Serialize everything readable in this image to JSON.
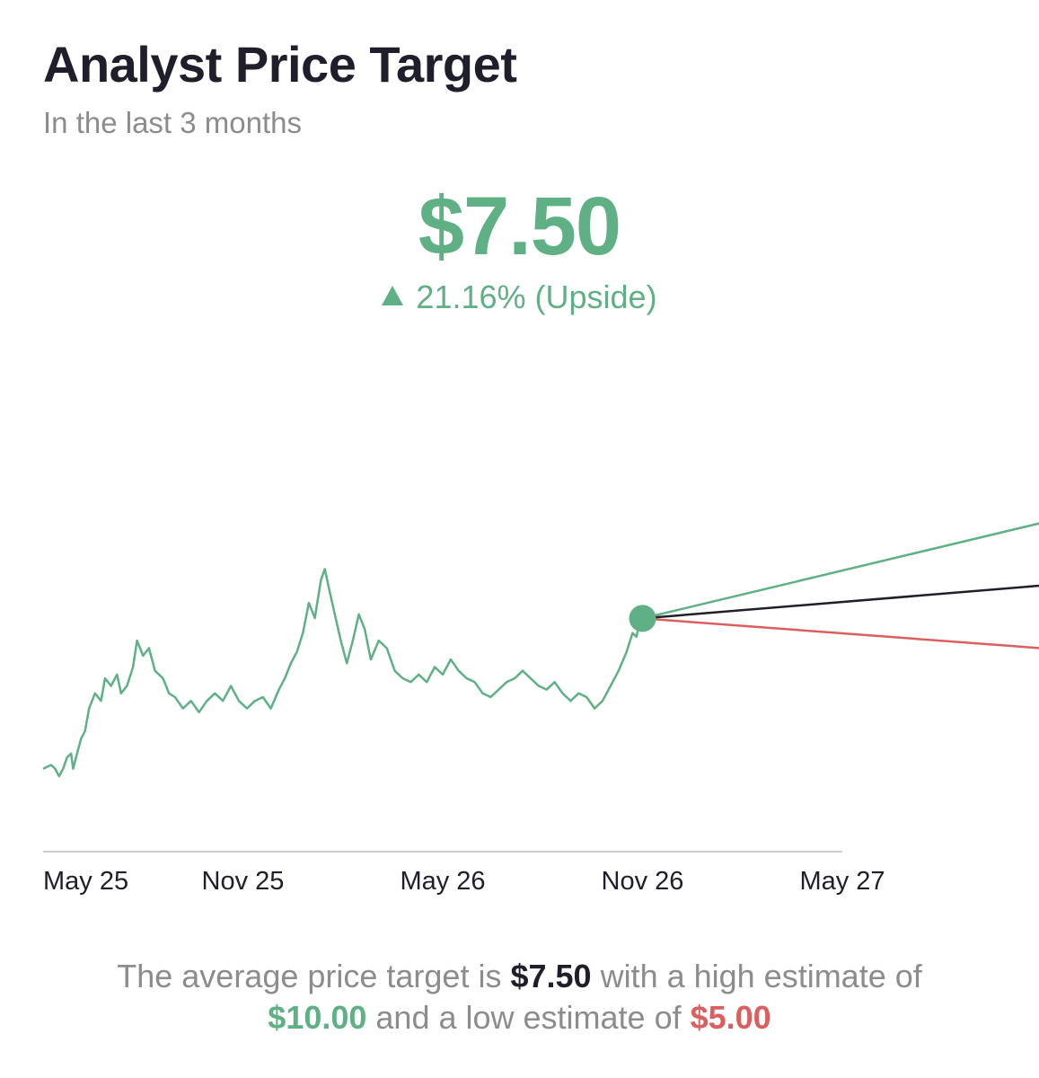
{
  "header": {
    "title": "Analyst Price Target",
    "subtitle": "In the last 3 months"
  },
  "summary_card": {
    "average_target": "$7.50",
    "upside_text": "21.16% (Upside)",
    "upside_percent": 21.16
  },
  "footer": {
    "text_1": "The average price target is ",
    "average": "$7.50",
    "text_2": " with a high estimate of",
    "high": "$10.00",
    "text_3": " and a low estimate of ",
    "low": "$5.00"
  },
  "colors": {
    "green": "#5fb085",
    "red": "#dc5f5f",
    "dark": "#1f1f2b",
    "gray": "#8c8c8c"
  },
  "chart_data": {
    "type": "line",
    "title": "",
    "xlabel": "",
    "ylabel": "",
    "ylim": [
      0,
      13.9
    ],
    "x_ticks": [
      "May 25",
      "Nov 25",
      "May 26",
      "Nov 26",
      "May 27"
    ],
    "grid": false,
    "series": [
      {
        "name": "",
        "color": "#5fb085",
        "points": [
          [
            0.0,
            2.2
          ],
          [
            0.04,
            2.3
          ],
          [
            0.06,
            2.2
          ],
          [
            0.08,
            2.0
          ],
          [
            0.1,
            2.2
          ],
          [
            0.12,
            2.5
          ],
          [
            0.14,
            2.6
          ],
          [
            0.15,
            2.2
          ],
          [
            0.17,
            2.6
          ],
          [
            0.19,
            3.0
          ],
          [
            0.21,
            3.2
          ],
          [
            0.23,
            3.8
          ],
          [
            0.26,
            4.2
          ],
          [
            0.29,
            4.0
          ],
          [
            0.31,
            4.6
          ],
          [
            0.34,
            4.4
          ],
          [
            0.37,
            4.7
          ],
          [
            0.39,
            4.2
          ],
          [
            0.42,
            4.4
          ],
          [
            0.45,
            4.9
          ],
          [
            0.47,
            5.6
          ],
          [
            0.5,
            5.2
          ],
          [
            0.53,
            5.4
          ],
          [
            0.56,
            4.8
          ],
          [
            0.6,
            4.6
          ],
          [
            0.63,
            4.2
          ],
          [
            0.66,
            4.1
          ],
          [
            0.7,
            3.8
          ],
          [
            0.74,
            4.0
          ],
          [
            0.78,
            3.7
          ],
          [
            0.82,
            4.0
          ],
          [
            0.86,
            4.2
          ],
          [
            0.9,
            4.0
          ],
          [
            0.94,
            4.4
          ],
          [
            0.98,
            4.0
          ],
          [
            1.02,
            3.8
          ],
          [
            1.06,
            4.0
          ],
          [
            1.1,
            4.1
          ],
          [
            1.14,
            3.8
          ],
          [
            1.18,
            4.3
          ],
          [
            1.21,
            4.6
          ],
          [
            1.24,
            5.0
          ],
          [
            1.27,
            5.3
          ],
          [
            1.3,
            5.8
          ],
          [
            1.33,
            6.6
          ],
          [
            1.36,
            6.2
          ],
          [
            1.39,
            7.2
          ],
          [
            1.41,
            7.5
          ],
          [
            1.43,
            7.0
          ],
          [
            1.46,
            6.3
          ],
          [
            1.49,
            5.6
          ],
          [
            1.52,
            5.0
          ],
          [
            1.55,
            5.6
          ],
          [
            1.58,
            6.3
          ],
          [
            1.61,
            5.9
          ],
          [
            1.64,
            5.1
          ],
          [
            1.68,
            5.6
          ],
          [
            1.72,
            5.4
          ],
          [
            1.76,
            4.8
          ],
          [
            1.8,
            4.6
          ],
          [
            1.84,
            4.5
          ],
          [
            1.88,
            4.7
          ],
          [
            1.92,
            4.5
          ],
          [
            1.96,
            4.9
          ],
          [
            2.0,
            4.7
          ],
          [
            2.04,
            5.1
          ],
          [
            2.08,
            4.8
          ],
          [
            2.12,
            4.6
          ],
          [
            2.16,
            4.5
          ],
          [
            2.2,
            4.2
          ],
          [
            2.24,
            4.1
          ],
          [
            2.28,
            4.3
          ],
          [
            2.32,
            4.5
          ],
          [
            2.36,
            4.6
          ],
          [
            2.4,
            4.8
          ],
          [
            2.44,
            4.6
          ],
          [
            2.48,
            4.4
          ],
          [
            2.52,
            4.3
          ],
          [
            2.56,
            4.5
          ],
          [
            2.6,
            4.2
          ],
          [
            2.64,
            4.0
          ],
          [
            2.68,
            4.2
          ],
          [
            2.72,
            4.1
          ],
          [
            2.76,
            3.8
          ],
          [
            2.8,
            4.0
          ],
          [
            2.84,
            4.4
          ],
          [
            2.88,
            4.8
          ],
          [
            2.92,
            5.3
          ],
          [
            2.95,
            5.8
          ],
          [
            2.97,
            5.7
          ],
          [
            2.99,
            6.2
          ],
          [
            3.0,
            6.19
          ],
          [
            3.01,
            6.19
          ]
        ]
      }
    ],
    "forecast": {
      "origin": {
        "x": 3.0,
        "y": 6.19
      },
      "end_x": 6.0,
      "targets": [
        {
          "label": "$10.00",
          "value": 10.0,
          "color": "#5fb085"
        },
        {
          "label": "$7.50",
          "value": 7.5,
          "color": "#1f1f2b"
        },
        {
          "label": "$5.00",
          "value": 5.0,
          "color": "#dc5f5f"
        }
      ]
    }
  }
}
